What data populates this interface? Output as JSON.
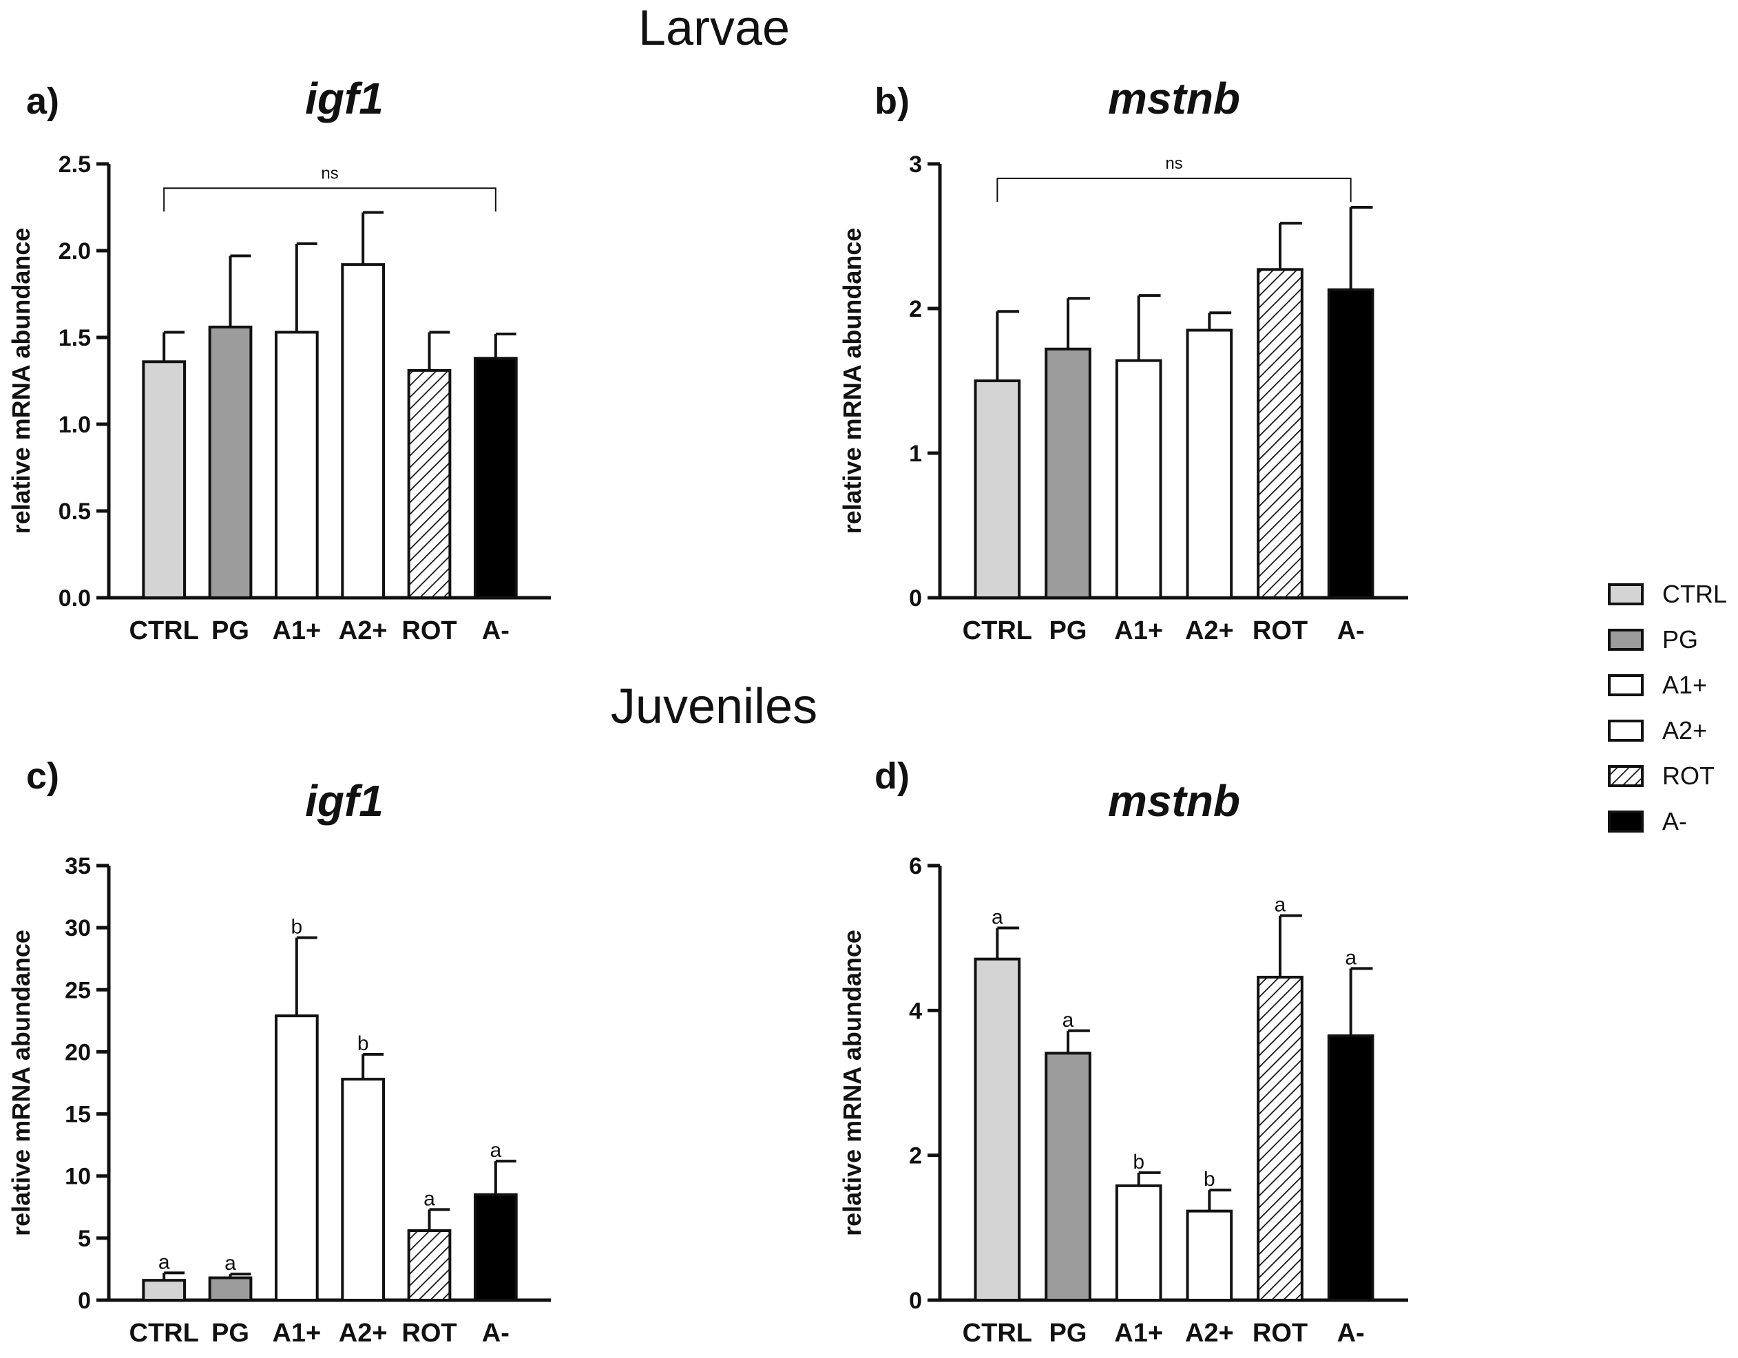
{
  "sections": {
    "top": "Larvae",
    "bottom": "Juveniles"
  },
  "legend": [
    {
      "label": "CTRL",
      "fill": "light"
    },
    {
      "label": "PG",
      "fill": "gray"
    },
    {
      "label": "A1+",
      "fill": "white"
    },
    {
      "label": "A2+",
      "fill": "white"
    },
    {
      "label": "ROT",
      "fill": "hatch"
    },
    {
      "label": "A-",
      "fill": "black"
    }
  ],
  "colors": {
    "light": "#d4d4d4",
    "gray": "#9c9c9c",
    "white": "#ffffff",
    "black": "#000000",
    "stroke": "#111111"
  },
  "chart_data": [
    {
      "panel": "a)",
      "type": "bar",
      "title": "igf1",
      "section": "Larvae",
      "ylabel": "relative mRNA abundance",
      "ylim": [
        0,
        2.5
      ],
      "yticks": [
        "0.0",
        "0.5",
        "1.0",
        "1.5",
        "2.0",
        "2.5"
      ],
      "categories": [
        "CTRL",
        "PG",
        "A1+",
        "A2+",
        "ROT",
        "A-"
      ],
      "values": [
        1.36,
        1.56,
        1.53,
        1.92,
        1.31,
        1.38
      ],
      "errors": [
        0.17,
        0.41,
        0.51,
        0.3,
        0.22,
        0.14
      ],
      "annotations": [
        "",
        "",
        "",
        "",
        "",
        ""
      ],
      "bracket": {
        "label": "ns",
        "from": 0,
        "to": 5,
        "y": 2.36
      }
    },
    {
      "panel": "b)",
      "type": "bar",
      "title": "mstnb",
      "section": "Larvae",
      "ylabel": "relative mRNA abundance",
      "ylim": [
        0,
        3
      ],
      "yticks": [
        "0",
        "1",
        "2",
        "3"
      ],
      "categories": [
        "CTRL",
        "PG",
        "A1+",
        "A2+",
        "ROT",
        "A-"
      ],
      "values": [
        1.5,
        1.72,
        1.64,
        1.85,
        2.27,
        2.13
      ],
      "errors": [
        0.48,
        0.35,
        0.45,
        0.12,
        0.32,
        0.57
      ],
      "annotations": [
        "",
        "",
        "",
        "",
        "",
        ""
      ],
      "bracket": {
        "label": "ns",
        "from": 0,
        "to": 5,
        "y": 2.9
      }
    },
    {
      "panel": "c)",
      "type": "bar",
      "title": "igf1",
      "section": "Juveniles",
      "ylabel": "relative mRNA abundance",
      "ylim": [
        0,
        35
      ],
      "yticks": [
        "0",
        "5",
        "10",
        "15",
        "20",
        "25",
        "30",
        "35"
      ],
      "categories": [
        "CTRL",
        "PG",
        "A1+",
        "A2+",
        "ROT",
        "A-"
      ],
      "values": [
        1.6,
        1.8,
        22.9,
        17.8,
        5.6,
        8.5
      ],
      "errors": [
        0.6,
        0.3,
        6.3,
        2.0,
        1.7,
        2.7
      ],
      "annotations": [
        "a",
        "a",
        "b",
        "b",
        "a",
        "a"
      ]
    },
    {
      "panel": "d)",
      "type": "bar",
      "title": "mstnb",
      "section": "Juveniles",
      "ylabel": "relative mRNA abundance",
      "ylim": [
        0,
        6
      ],
      "yticks": [
        "0",
        "2",
        "4",
        "6"
      ],
      "categories": [
        "CTRL",
        "PG",
        "A1+",
        "A2+",
        "ROT",
        "A-"
      ],
      "values": [
        4.71,
        3.41,
        1.58,
        1.23,
        4.46,
        3.65
      ],
      "errors": [
        0.43,
        0.31,
        0.18,
        0.29,
        0.85,
        0.93
      ],
      "annotations": [
        "a",
        "a",
        "b",
        "b",
        "a",
        "a"
      ]
    }
  ]
}
